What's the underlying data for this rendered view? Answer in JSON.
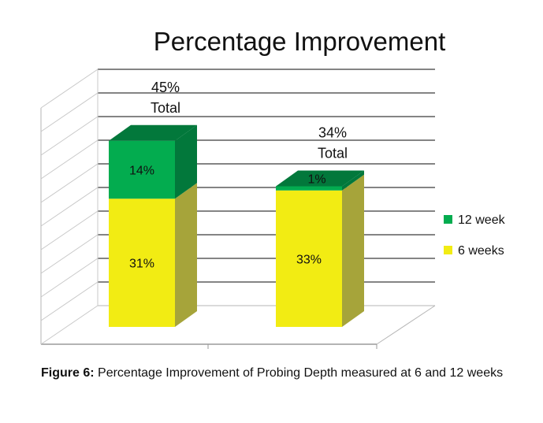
{
  "caption": {
    "label": "Figure 6:",
    "text": "Percentage Improvement of Probing Depth measured at 6 and 12 weeks"
  },
  "chart_data": {
    "type": "bar",
    "stacked": true,
    "three_d": true,
    "title": "Percentage Improvement",
    "categories": [
      "",
      ""
    ],
    "series": [
      {
        "name": "6 weeks",
        "values": [
          31,
          33
        ],
        "labels": [
          "31%",
          "33%"
        ],
        "color": "#f2ec13",
        "side_color": "#a6a43a"
      },
      {
        "name": "12 weeks",
        "values": [
          14,
          1
        ],
        "labels": [
          "14%",
          "1%"
        ],
        "color": "#03ac4f",
        "side_color": "#02783b"
      }
    ],
    "totals": [
      {
        "value": "45%",
        "word": "Total"
      },
      {
        "value": "34%",
        "word": "Total"
      }
    ],
    "legend": {
      "entries": [
        "12 week",
        "6 weeks"
      ],
      "placement": "right"
    },
    "ylim": [
      0,
      50
    ],
    "grid": true
  }
}
